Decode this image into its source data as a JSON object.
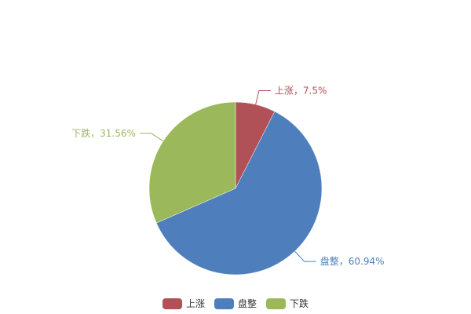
{
  "chart_data": {
    "type": "pie",
    "start": "top",
    "direction": "clockwise",
    "slices": [
      {
        "name": "上涨",
        "value": 7.5,
        "label": "上涨，7.5%",
        "color": "#b05157"
      },
      {
        "name": "盘整",
        "value": 60.94,
        "label": "盘整，60.94%",
        "color": "#4e7fbc"
      },
      {
        "name": "下跌",
        "value": 31.56,
        "label": "下跌，31.56%",
        "color": "#9bb85a"
      }
    ],
    "legend": {
      "placement": "bottom",
      "entries": [
        "上涨",
        "盘整",
        "下跌"
      ]
    }
  }
}
